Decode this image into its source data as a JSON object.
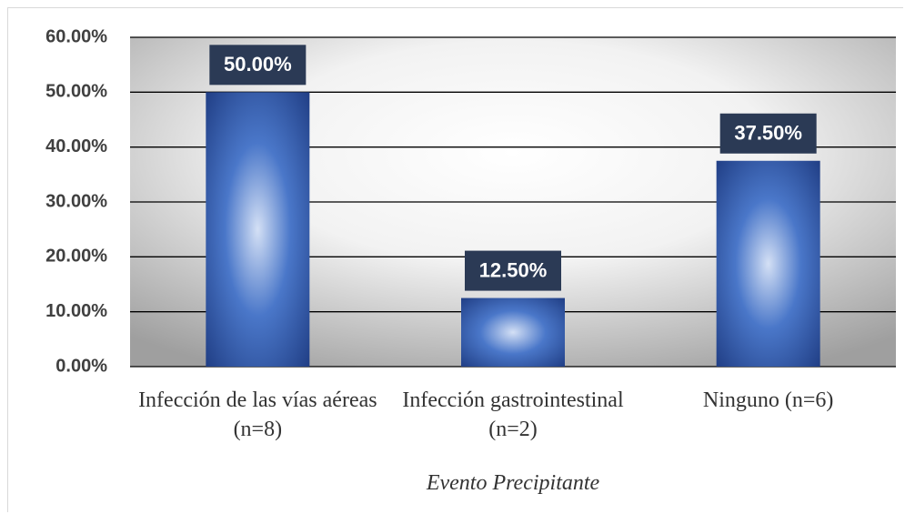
{
  "chart_data": {
    "type": "bar",
    "categories": [
      "Infección de las vías aéreas (n=8)",
      "Infección gastrointestinal (n=2)",
      "Ninguno (n=6)"
    ],
    "values": [
      50,
      12.5,
      37.5
    ],
    "value_labels": [
      "50.00%",
      "12.50%",
      "37.50%"
    ],
    "color": "#2f55a4",
    "x_label": "Evento Precipitante",
    "ylim": [
      0,
      60
    ],
    "yticks": [
      {
        "value": 0,
        "label": "0.00%"
      },
      {
        "value": 10,
        "label": "10.00%"
      },
      {
        "value": 20,
        "label": "20.00%"
      },
      {
        "value": 30,
        "label": "30.00%"
      },
      {
        "value": 40,
        "label": "40.00%"
      },
      {
        "value": 50,
        "label": "50.00%"
      },
      {
        "value": 60,
        "label": "60.00%"
      }
    ],
    "grid": true
  }
}
